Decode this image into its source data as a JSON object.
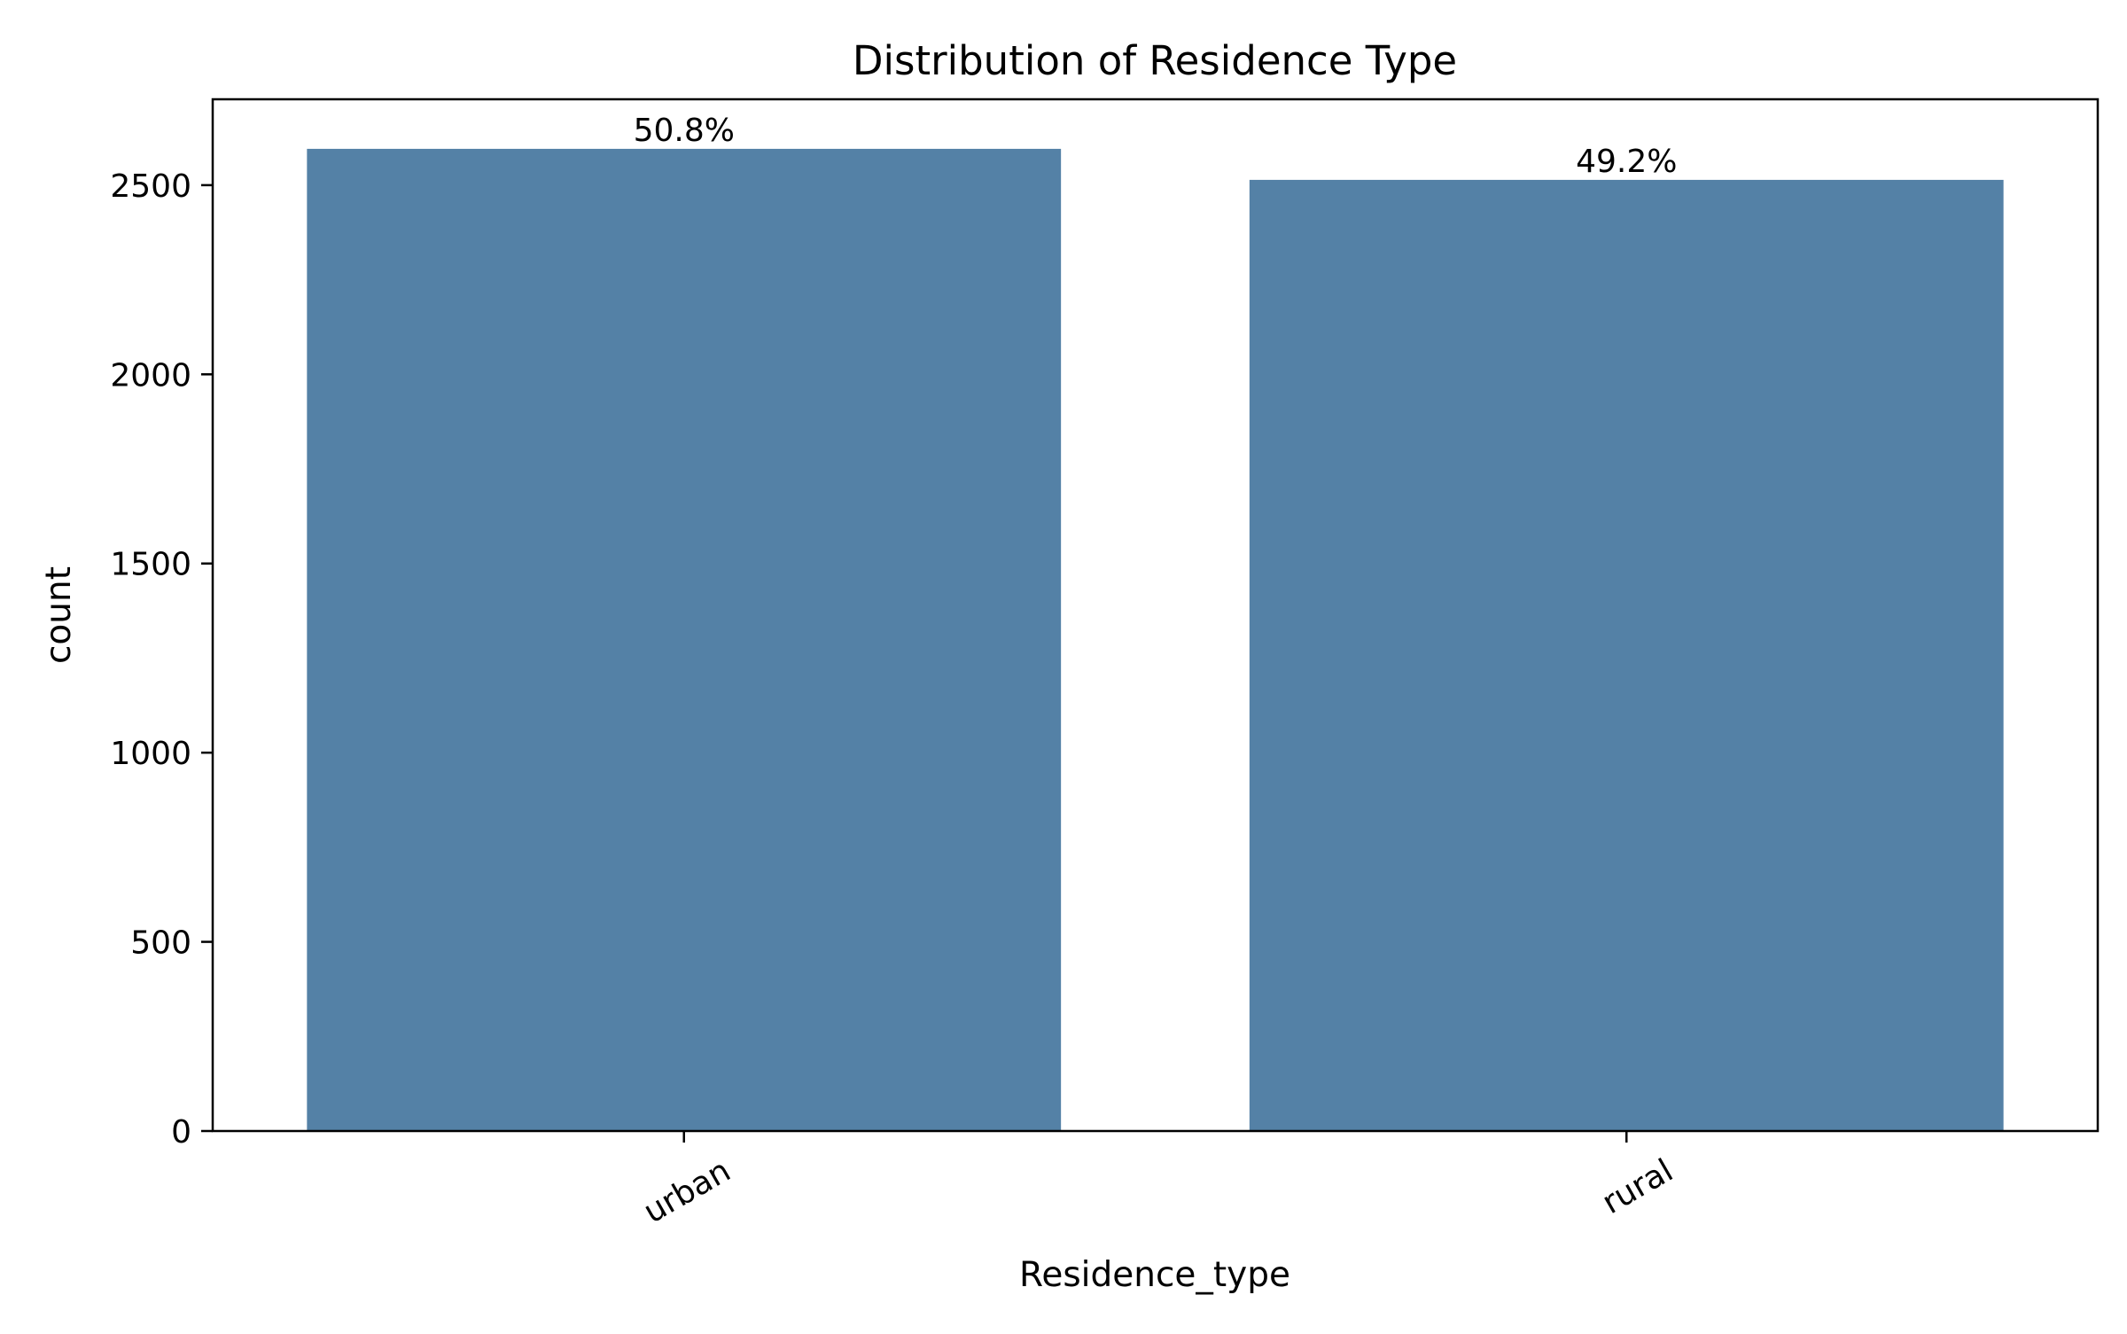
{
  "chart_data": {
    "type": "bar",
    "title": "Distribution of Residence Type",
    "xlabel": "Residence_type",
    "ylabel": "count",
    "categories": [
      "urban",
      "rural"
    ],
    "values": [
      2596,
      2514
    ],
    "data_labels": [
      "50.8%",
      "49.2%"
    ],
    "yticks": [
      0,
      500,
      1000,
      1500,
      2000,
      2500
    ],
    "ylim": [
      0,
      2727
    ],
    "grid": false,
    "legend": "none",
    "bar_color": "#5481a6"
  }
}
